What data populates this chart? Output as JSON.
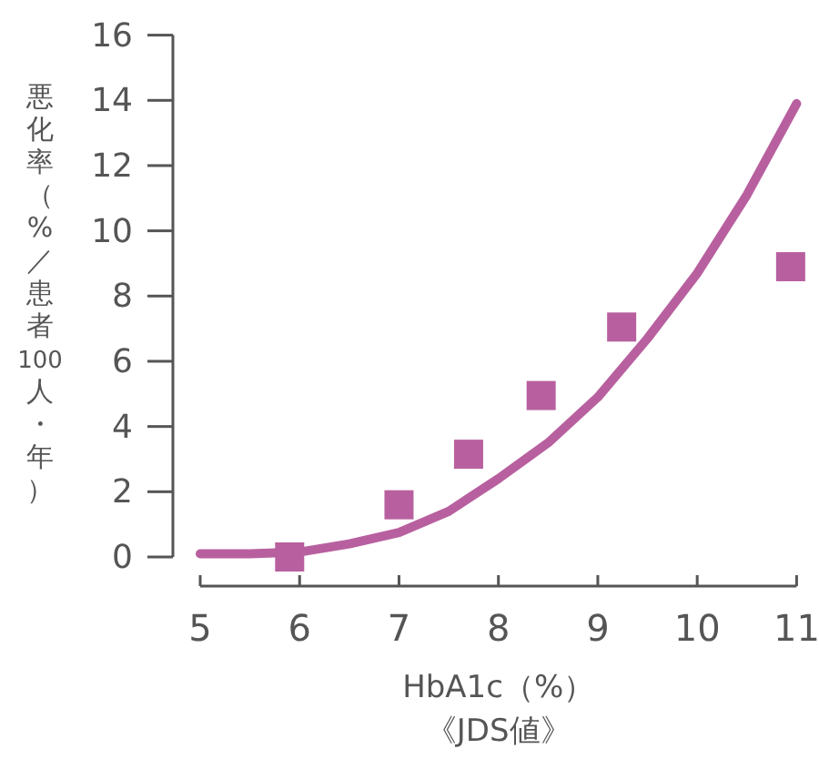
{
  "chart_data": {
    "type": "scatter",
    "xlabel": "HbA1c（%）《JDS値》",
    "ylabel": "悪化率（%／患者100人・年）",
    "xlim": [
      5,
      11
    ],
    "xticks": [
      5,
      6,
      7,
      8,
      9,
      10,
      11
    ],
    "ylim": [
      0,
      16
    ],
    "yticks": [
      0,
      2,
      4,
      6,
      8,
      10,
      12,
      14,
      16
    ],
    "marker": "square",
    "series": [
      {
        "type": "line",
        "marker": "none",
        "color": "#b8609f",
        "x": [
          5,
          5.5,
          6,
          6.5,
          7,
          7.5,
          8,
          8.5,
          9,
          9.5,
          10,
          10.5,
          11
        ],
        "values": [
          0.1,
          0.1,
          0.15,
          0.4,
          0.75,
          1.4,
          2.4,
          3.5,
          4.9,
          6.7,
          8.7,
          11.1,
          13.9
        ]
      },
      {
        "color": "#b8609f",
        "x": [
          5.9,
          7.0,
          7.7,
          8.43,
          9.24,
          10.94
        ],
        "values": [
          0,
          1.6,
          3.15,
          4.95,
          7.05,
          8.9
        ]
      }
    ]
  }
}
